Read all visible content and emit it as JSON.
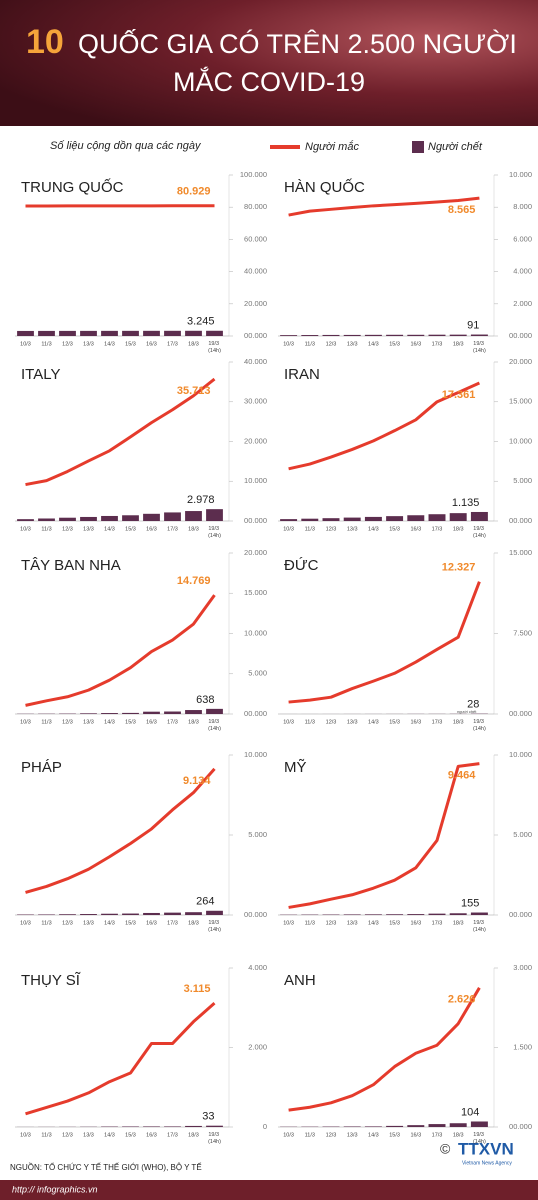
{
  "header": {
    "title_number": "10",
    "title_line1": "QUỐC GIA CÓ TRÊN 2.500 NGƯỜI",
    "title_line2": "MẮC COVID-19"
  },
  "subtitle": "Số liệu cộng dồn qua các ngày",
  "legend": [
    {
      "name": "Người mắc",
      "color": "#e53b2c"
    },
    {
      "name": "Người chết",
      "color": "#5c2d4e"
    }
  ],
  "footer": {
    "source": "NGUỒN: TỔ CHỨC Y TẾ THẾ GIỚI (WHO), BỘ Y TẾ",
    "url": "http:// infographics.vn",
    "copyright": "©",
    "logo": "TTXVN",
    "logo_sub": "Vietnam News Agency"
  },
  "chart_data": [
    {
      "type": "combo",
      "title": "TRUNG QUỐC",
      "categories": [
        "10/3",
        "11/3",
        "12/3",
        "13/3",
        "14/3",
        "15/3",
        "16/3",
        "17/3",
        "18/3",
        "19/3 (14h)"
      ],
      "series": [
        {
          "values": [
            80754,
            80778,
            80793,
            80813,
            80824,
            80844,
            80860,
            80881,
            80894,
            80929
          ],
          "value_labels": [
            null,
            null,
            null,
            null,
            null,
            null,
            null,
            null,
            null,
            "80.929"
          ]
        },
        {
          "values": [
            3136,
            3158,
            3169,
            3176,
            3189,
            3199,
            3213,
            3226,
            3237,
            3245
          ],
          "value_labels": [
            null,
            null,
            null,
            null,
            null,
            null,
            null,
            null,
            null,
            "3.245"
          ]
        }
      ],
      "ylim": [
        0,
        100000
      ],
      "yticks": [
        {
          "value": 0,
          "label": "00.000"
        },
        {
          "value": 20000,
          "label": "20.000"
        },
        {
          "value": 40000,
          "label": "40.000"
        },
        {
          "value": 60000,
          "label": "60.000"
        },
        {
          "value": 80000,
          "label": "80.000"
        },
        {
          "value": 100000,
          "label": "100.000"
        }
      ]
    },
    {
      "type": "combo",
      "title": "HÀN QUỐC",
      "categories": [
        "10/3",
        "11/3",
        "12/3",
        "13/3",
        "14/3",
        "15/3",
        "16/3",
        "17/3",
        "18/3",
        "19/3 (14h)"
      ],
      "series": [
        {
          "values": [
            7513,
            7755,
            7869,
            7979,
            8086,
            8162,
            8236,
            8320,
            8413,
            8565
          ],
          "value_labels": [
            null,
            null,
            null,
            null,
            null,
            null,
            null,
            null,
            null,
            "8.565"
          ]
        },
        {
          "values": [
            54,
            60,
            66,
            67,
            72,
            75,
            75,
            81,
            84,
            91
          ],
          "value_labels": [
            null,
            null,
            null,
            null,
            null,
            null,
            null,
            null,
            null,
            "91"
          ]
        }
      ],
      "ylim": [
        0,
        10000
      ],
      "yticks": [
        {
          "value": 0,
          "label": "00.000"
        },
        {
          "value": 2000,
          "label": "2.000"
        },
        {
          "value": 4000,
          "label": "4.000"
        },
        {
          "value": 6000,
          "label": "6.000"
        },
        {
          "value": 8000,
          "label": "8.000"
        },
        {
          "value": 10000,
          "label": "10.000"
        }
      ]
    },
    {
      "type": "combo",
      "title": "ITALY",
      "categories": [
        "10/3",
        "11/3",
        "12/3",
        "13/3",
        "14/3",
        "15/3",
        "16/3",
        "17/3",
        "18/3",
        "19/3 (14h)"
      ],
      "series": [
        {
          "values": [
            9172,
            10149,
            12462,
            15113,
            17660,
            21157,
            24747,
            27980,
            31506,
            35713
          ],
          "value_labels": [
            null,
            null,
            null,
            null,
            null,
            null,
            null,
            null,
            null,
            "35.713"
          ]
        },
        {
          "values": [
            463,
            631,
            827,
            1016,
            1266,
            1441,
            1809,
            2158,
            2503,
            2978
          ],
          "value_labels": [
            null,
            null,
            null,
            null,
            null,
            null,
            null,
            null,
            null,
            "2.978"
          ]
        }
      ],
      "ylim": [
        0,
        40000
      ],
      "yticks": [
        {
          "value": 0,
          "label": "00.000"
        },
        {
          "value": 10000,
          "label": "10.000"
        },
        {
          "value": 20000,
          "label": "20.000"
        },
        {
          "value": 30000,
          "label": "30.000"
        },
        {
          "value": 40000,
          "label": "40.000"
        }
      ]
    },
    {
      "type": "combo",
      "title": "IRAN",
      "categories": [
        "10/3",
        "11/3",
        "12/3",
        "13/3",
        "14/3",
        "15/3",
        "16/3",
        "17/3",
        "18/3",
        "19/3 (14h)"
      ],
      "series": [
        {
          "values": [
            6566,
            7161,
            8042,
            9000,
            10075,
            11364,
            12729,
            14991,
            16169,
            17361
          ],
          "value_labels": [
            null,
            null,
            null,
            null,
            null,
            null,
            null,
            null,
            null,
            "17.361"
          ]
        },
        {
          "values": [
            237,
            291,
            354,
            429,
            514,
            611,
            724,
            853,
            988,
            1135
          ],
          "value_labels": [
            null,
            null,
            null,
            null,
            null,
            null,
            null,
            null,
            null,
            "1.135"
          ]
        }
      ],
      "ylim": [
        0,
        20000
      ],
      "yticks": [
        {
          "value": 0,
          "label": "00.000"
        },
        {
          "value": 5000,
          "label": "5.000"
        },
        {
          "value": 10000,
          "label": "10.000"
        },
        {
          "value": 15000,
          "label": "15.000"
        },
        {
          "value": 20000,
          "label": "20.000"
        }
      ]
    },
    {
      "type": "combo",
      "title": "TÂY BAN NHA",
      "categories": [
        "10/3",
        "11/3",
        "12/3",
        "13/3",
        "14/3",
        "15/3",
        "16/3",
        "17/3",
        "18/3",
        "19/3 (14h)"
      ],
      "series": [
        {
          "values": [
            1073,
            1639,
            2140,
            2965,
            4209,
            5753,
            7753,
            9191,
            11178,
            14769
          ],
          "value_labels": [
            null,
            null,
            null,
            null,
            null,
            null,
            null,
            null,
            null,
            "14.769"
          ]
        },
        {
          "values": [
            28,
            36,
            48,
            84,
            120,
            136,
            288,
            309,
            491,
            638
          ],
          "value_labels": [
            null,
            null,
            null,
            null,
            null,
            null,
            null,
            null,
            null,
            "638"
          ]
        }
      ],
      "ylim": [
        0,
        20000
      ],
      "yticks": [
        {
          "value": 0,
          "label": "00.000"
        },
        {
          "value": 5000,
          "label": "5.000"
        },
        {
          "value": 10000,
          "label": "10.000"
        },
        {
          "value": 15000,
          "label": "15.000"
        },
        {
          "value": 20000,
          "label": "20.000"
        }
      ]
    },
    {
      "type": "combo",
      "title": "ĐỨC",
      "categories": [
        "10/3",
        "11/3",
        "12/3",
        "13/3",
        "14/3",
        "15/3",
        "16/3",
        "17/3",
        "18/3",
        "19/3 (14h)"
      ],
      "series": [
        {
          "values": [
            1112,
            1296,
            1567,
            2369,
            3062,
            3795,
            4838,
            6012,
            7156,
            12327
          ],
          "value_labels": [
            null,
            null,
            null,
            null,
            null,
            null,
            null,
            null,
            null,
            "12.327"
          ]
        },
        {
          "values": [
            2,
            2,
            3,
            5,
            6,
            8,
            12,
            13,
            17,
            28
          ],
          "value_labels": [
            null,
            null,
            null,
            null,
            null,
            null,
            null,
            null,
            null,
            "28"
          ]
        }
      ],
      "deaths_note": "người chết",
      "ylim": [
        0,
        15000
      ],
      "yticks": [
        {
          "value": 0,
          "label": "00.000"
        },
        {
          "value": 7500,
          "label": "7.500"
        },
        {
          "value": 15000,
          "label": "15.000"
        }
      ]
    },
    {
      "type": "combo",
      "title": "PHÁP",
      "categories": [
        "10/3",
        "11/3",
        "12/3",
        "13/3",
        "14/3",
        "15/3",
        "16/3",
        "17/3",
        "18/3",
        "19/3 (14h)"
      ],
      "series": [
        {
          "values": [
            1412,
            1784,
            2269,
            2860,
            3640,
            4469,
            5380,
            6573,
            7652,
            9134
          ],
          "value_labels": [
            null,
            null,
            null,
            null,
            null,
            null,
            null,
            null,
            null,
            "9.134"
          ]
        },
        {
          "values": [
            30,
            33,
            48,
            61,
            79,
            91,
            127,
            148,
            175,
            264
          ],
          "value_labels": [
            null,
            null,
            null,
            null,
            null,
            null,
            null,
            null,
            null,
            "264"
          ]
        }
      ],
      "ylim": [
        0,
        10000
      ],
      "yticks": [
        {
          "value": 0,
          "label": "00.000"
        },
        {
          "value": 5000,
          "label": "5.000"
        },
        {
          "value": 10000,
          "label": "10.000"
        }
      ]
    },
    {
      "type": "combo",
      "title": "MỸ",
      "categories": [
        "10/3",
        "11/3",
        "12/3",
        "13/3",
        "14/3",
        "15/3",
        "16/3",
        "17/3",
        "18/3",
        "19/3 (14h)"
      ],
      "series": [
        {
          "values": [
            472,
            696,
            987,
            1264,
            1678,
            2174,
            2951,
            4661,
            9292,
            9464
          ],
          "value_labels": [
            null,
            null,
            null,
            null,
            null,
            null,
            null,
            null,
            null,
            "9.464"
          ]
        },
        {
          "values": [
            19,
            25,
            29,
            36,
            41,
            47,
            57,
            85,
            108,
            155
          ],
          "value_labels": [
            null,
            null,
            null,
            null,
            null,
            null,
            null,
            null,
            null,
            "155"
          ]
        }
      ],
      "ylim": [
        0,
        10000
      ],
      "yticks": [
        {
          "value": 0,
          "label": "00.000"
        },
        {
          "value": 5000,
          "label": "5.000"
        },
        {
          "value": 10000,
          "label": "10.000"
        }
      ]
    },
    {
      "type": "combo",
      "title": "THỤY SĨ",
      "categories": [
        "10/3",
        "11/3",
        "12/3",
        "13/3",
        "14/3",
        "15/3",
        "16/3",
        "17/3",
        "18/3",
        "19/3 (14h)"
      ],
      "series": [
        {
          "values": [
            332,
            491,
            652,
            858,
            1139,
            1359,
            2100,
            2100,
            2650,
            3115
          ],
          "value_labels": [
            null,
            null,
            null,
            null,
            null,
            null,
            null,
            null,
            null,
            "3.115"
          ]
        },
        {
          "values": [
            2,
            3,
            4,
            6,
            11,
            13,
            14,
            14,
            27,
            33
          ],
          "value_labels": [
            null,
            null,
            null,
            null,
            null,
            null,
            null,
            null,
            null,
            "33"
          ]
        }
      ],
      "ylim": [
        0,
        4000
      ],
      "yticks": [
        0,
        {
          "value": 2000,
          "label": "2.000"
        },
        {
          "value": 4000,
          "label": "4.000"
        }
      ]
    },
    {
      "type": "combo",
      "title": "ANH",
      "categories": [
        "10/3",
        "11/3",
        "12/3",
        "13/3",
        "14/3",
        "15/3",
        "16/3",
        "17/3",
        "18/3",
        "19/3 (14h)"
      ],
      "series": [
        {
          "values": [
            319,
            373,
            456,
            590,
            798,
            1140,
            1391,
            1543,
            1950,
            2626
          ],
          "value_labels": [
            null,
            null,
            null,
            null,
            null,
            null,
            null,
            null,
            null,
            "2.626"
          ]
        },
        {
          "values": [
            5,
            6,
            8,
            10,
            11,
            21,
            35,
            55,
            71,
            104
          ],
          "value_labels": [
            null,
            null,
            null,
            null,
            null,
            null,
            null,
            null,
            null,
            "104"
          ]
        }
      ],
      "ylim": [
        0,
        3000
      ],
      "yticks": [
        {
          "value": 0,
          "label": "00.000"
        },
        {
          "value": 1500,
          "label": "1.500"
        },
        {
          "value": 3000,
          "label": "3.000"
        }
      ]
    }
  ]
}
